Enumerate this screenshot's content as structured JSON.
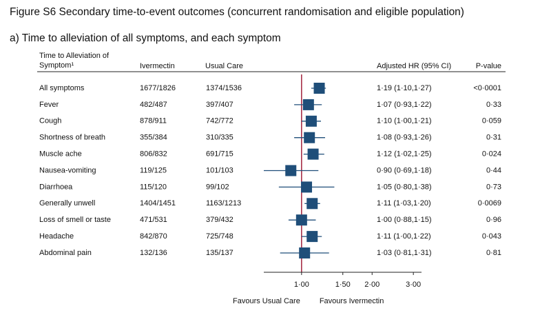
{
  "chart_data": {
    "type": "forest",
    "title": "Figure S6 Secondary time-to-event outcomes (concurrent randomisation and eligible population)",
    "subtitle": "a)  Time to alleviation of all symptoms, and each symptom",
    "headers": {
      "name": "Time to Alleviation of Symptom¹",
      "ivermectin": "Ivermectin",
      "usual_care": "Usual Care",
      "hr": "Adjusted HR (95% CI)",
      "p": "P-value"
    },
    "categories": [
      "All symptoms",
      "Fever",
      "Cough",
      "Shortness of breath",
      "Muscle ache",
      "Nausea-vomiting",
      "Diarrhoea",
      "Generally unwell",
      "Loss of smell or taste",
      "Headache",
      "Abdominal pain"
    ],
    "ivermectin": [
      "1677/1826",
      "482/487",
      "878/911",
      "355/384",
      "806/832",
      "119/125",
      "115/120",
      "1404/1451",
      "471/531",
      "842/870",
      "132/136"
    ],
    "usual_care": [
      "1374/1536",
      "397/407",
      "742/772",
      "310/335",
      "691/715",
      "101/103",
      "99/102",
      "1163/1213",
      "379/432",
      "725/748",
      "135/137"
    ],
    "values": [
      1.19,
      1.07,
      1.1,
      1.08,
      1.12,
      0.9,
      1.05,
      1.11,
      1.0,
      1.11,
      1.03
    ],
    "lower": [
      1.1,
      0.93,
      1.0,
      0.93,
      1.02,
      0.69,
      0.8,
      1.03,
      0.88,
      1.0,
      0.81
    ],
    "upper": [
      1.27,
      1.22,
      1.21,
      1.26,
      1.25,
      1.18,
      1.38,
      1.2,
      1.15,
      1.22,
      1.31
    ],
    "value_labels": [
      "1·19 (1·10,1·27)",
      "1·07 (0·93,1·22)",
      "1·10 (1·00,1·21)",
      "1·08 (0·93,1·26)",
      "1·12 (1·02,1·25)",
      "0·90 (0·69,1·18)",
      "1·05 (0·80,1·38)",
      "1·11 (1·03,1·20)",
      "1·00 (0·88,1·15)",
      "1·11 (1·00,1·22)",
      "1·03 (0·81,1·31)"
    ],
    "p_values": [
      "<0·0001",
      "0·33",
      "0·059",
      "0·31",
      "0·024",
      "0·44",
      "0·73",
      "0·0069",
      "0·96",
      "0·043",
      "0·81"
    ],
    "xlim": [
      0.69,
      3.25
    ],
    "xticks": [
      {
        "value": 1,
        "label": "1·00"
      },
      {
        "value": 1.5,
        "label": "1·50"
      },
      {
        "value": 2,
        "label": "2·00"
      },
      {
        "value": 3,
        "label": "3·00"
      }
    ],
    "log_scale": true,
    "reference_line": 1,
    "x_labels": [
      "Favours Usual Care",
      "Favours Ivermectin"
    ],
    "color": "#1f4e79",
    "reference_color": "#a0213a"
  }
}
